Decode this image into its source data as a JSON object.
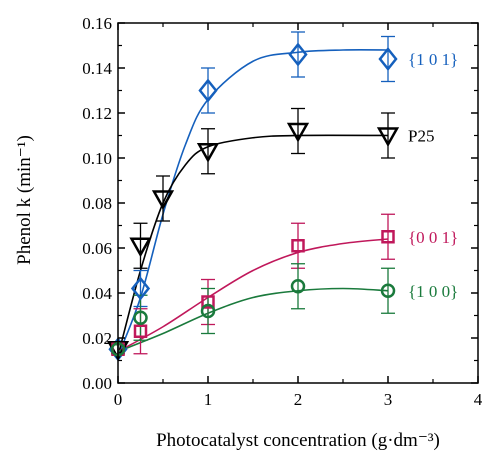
{
  "chart_data": {
    "type": "scatter",
    "title": "",
    "xlabel": "Photocatalyst concentration (g·dm⁻³)",
    "ylabel": "Phenol k (min⁻¹)",
    "xlim": [
      0,
      4
    ],
    "ylim": [
      0,
      0.16
    ],
    "x_ticks": [
      "0",
      "1",
      "2",
      "3",
      "4"
    ],
    "y_ticks": [
      "0.00",
      "0.02",
      "0.04",
      "0.06",
      "0.08",
      "0.10",
      "0.12",
      "0.14",
      "0.16"
    ],
    "grid": false,
    "legend": "inline labels at right end of each series",
    "series": [
      {
        "name": "{1 0 1}",
        "color": "#1560bd",
        "marker": "diamond",
        "points": [
          {
            "x": 0,
            "y": 0.015,
            "err": 0.002
          },
          {
            "x": 0.25,
            "y": 0.042,
            "err": 0.008
          },
          {
            "x": 1,
            "y": 0.13,
            "err": 0.01
          },
          {
            "x": 2,
            "y": 0.146,
            "err": 0.01
          },
          {
            "x": 3,
            "y": 0.144,
            "err": 0.01
          }
        ],
        "fit": [
          [
            0,
            0.012
          ],
          [
            0.25,
            0.038
          ],
          [
            0.5,
            0.075
          ],
          [
            0.75,
            0.106
          ],
          [
            1,
            0.126
          ],
          [
            1.5,
            0.143
          ],
          [
            2,
            0.147
          ],
          [
            2.5,
            0.148
          ],
          [
            3,
            0.148
          ]
        ]
      },
      {
        "name": "P25",
        "color": "#000000",
        "marker": "triangle-down",
        "points": [
          {
            "x": 0,
            "y": 0.015,
            "err": 0.002
          },
          {
            "x": 0.25,
            "y": 0.061,
            "err": 0.01
          },
          {
            "x": 0.5,
            "y": 0.082,
            "err": 0.01
          },
          {
            "x": 1,
            "y": 0.103,
            "err": 0.01
          },
          {
            "x": 2,
            "y": 0.112,
            "err": 0.01
          },
          {
            "x": 3,
            "y": 0.11,
            "err": 0.01
          }
        ],
        "fit": [
          [
            0,
            0.012
          ],
          [
            0.25,
            0.05
          ],
          [
            0.5,
            0.08
          ],
          [
            0.75,
            0.097
          ],
          [
            1,
            0.105
          ],
          [
            1.5,
            0.109
          ],
          [
            2,
            0.11
          ],
          [
            3,
            0.11
          ]
        ]
      },
      {
        "name": "{0 0 1}",
        "color": "#c0185b",
        "marker": "square",
        "points": [
          {
            "x": 0,
            "y": 0.015,
            "err": 0.002
          },
          {
            "x": 0.25,
            "y": 0.023,
            "err": 0.01
          },
          {
            "x": 1,
            "y": 0.036,
            "err": 0.01
          },
          {
            "x": 2,
            "y": 0.061,
            "err": 0.01
          },
          {
            "x": 3,
            "y": 0.065,
            "err": 0.01
          }
        ],
        "fit": [
          [
            0,
            0.014
          ],
          [
            0.5,
            0.025
          ],
          [
            1,
            0.038
          ],
          [
            1.5,
            0.05
          ],
          [
            2,
            0.058
          ],
          [
            2.5,
            0.062
          ],
          [
            3,
            0.064
          ]
        ]
      },
      {
        "name": "{1 0 0}",
        "color": "#1a7a3c",
        "marker": "circle",
        "points": [
          {
            "x": 0,
            "y": 0.015,
            "err": 0.002
          },
          {
            "x": 0.25,
            "y": 0.029,
            "err": 0.01
          },
          {
            "x": 1,
            "y": 0.032,
            "err": 0.01
          },
          {
            "x": 2,
            "y": 0.043,
            "err": 0.01
          },
          {
            "x": 3,
            "y": 0.041,
            "err": 0.01
          }
        ],
        "fit": [
          [
            0,
            0.014
          ],
          [
            0.5,
            0.022
          ],
          [
            1,
            0.031
          ],
          [
            1.5,
            0.038
          ],
          [
            2,
            0.041
          ],
          [
            2.5,
            0.042
          ],
          [
            3,
            0.041
          ]
        ]
      }
    ]
  }
}
